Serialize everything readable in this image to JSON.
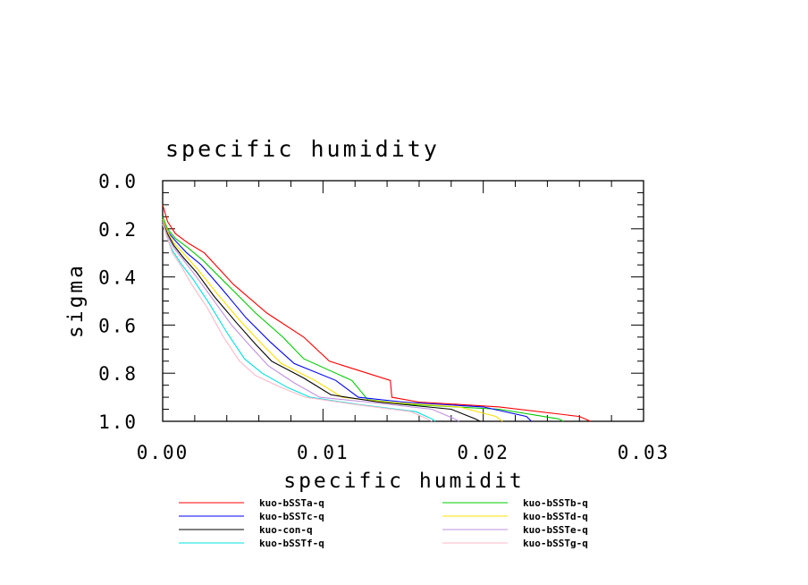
{
  "chart_data": {
    "type": "line",
    "title": "specific humidity",
    "xlabel": "specific humidit",
    "ylabel": "sigma",
    "xlim": [
      0,
      0.03
    ],
    "ylim": [
      0,
      1.0
    ],
    "y_inverted": true,
    "x_ticks": [
      "0.00",
      "0.01",
      "0.02",
      "0.03"
    ],
    "y_ticks": [
      "0.0",
      "0.2",
      "0.4",
      "0.6",
      "0.8",
      "1.0"
    ],
    "legend_position": "bottom",
    "series": [
      {
        "name": "kuo-bSSTa-q",
        "color": "#ff0000",
        "x": [
          0.0,
          0.0003,
          0.0008,
          0.0016,
          0.0026,
          0.0044,
          0.0065,
          0.0088,
          0.0104,
          0.0142,
          0.0143,
          0.016,
          0.021,
          0.026,
          0.0267
        ],
        "y": [
          0.1,
          0.17,
          0.22,
          0.26,
          0.3,
          0.43,
          0.55,
          0.65,
          0.75,
          0.83,
          0.9,
          0.92,
          0.94,
          0.98,
          1.0
        ]
      },
      {
        "name": "kuo-bSSTb-q",
        "color": "#00cc00",
        "x": [
          0.0,
          0.0003,
          0.0008,
          0.0016,
          0.0025,
          0.004,
          0.0058,
          0.0075,
          0.0088,
          0.0118,
          0.0128,
          0.0155,
          0.021,
          0.0247,
          0.025
        ],
        "y": [
          0.15,
          0.2,
          0.24,
          0.28,
          0.33,
          0.43,
          0.55,
          0.65,
          0.74,
          0.83,
          0.91,
          0.93,
          0.95,
          0.99,
          1.0
        ]
      },
      {
        "name": "kuo-bSSTc-q",
        "color": "#0000ff",
        "x": [
          0.0,
          0.0003,
          0.0008,
          0.0015,
          0.0024,
          0.0037,
          0.0052,
          0.0067,
          0.0082,
          0.0108,
          0.0122,
          0.015,
          0.02,
          0.0227,
          0.023
        ],
        "y": [
          0.16,
          0.21,
          0.25,
          0.3,
          0.35,
          0.45,
          0.57,
          0.67,
          0.76,
          0.83,
          0.9,
          0.92,
          0.94,
          0.98,
          1.0
        ]
      },
      {
        "name": "kuo-bSSTd-q",
        "color": "#ffe000",
        "x": [
          0.0,
          0.0003,
          0.0007,
          0.0014,
          0.0022,
          0.0034,
          0.0048,
          0.0062,
          0.0074,
          0.0095,
          0.0112,
          0.014,
          0.0185,
          0.0208,
          0.0212
        ],
        "y": [
          0.16,
          0.21,
          0.26,
          0.31,
          0.37,
          0.47,
          0.58,
          0.68,
          0.76,
          0.83,
          0.9,
          0.92,
          0.94,
          0.98,
          1.0
        ]
      },
      {
        "name": "kuo-con-q",
        "color": "#000000",
        "x": [
          0.0,
          0.0003,
          0.0007,
          0.0013,
          0.0021,
          0.0032,
          0.0046,
          0.0058,
          0.0068,
          0.0088,
          0.0105,
          0.0135,
          0.018,
          0.0195,
          0.0198
        ],
        "y": [
          0.17,
          0.22,
          0.27,
          0.32,
          0.38,
          0.48,
          0.59,
          0.68,
          0.75,
          0.82,
          0.89,
          0.92,
          0.95,
          0.99,
          1.0
        ]
      },
      {
        "name": "kuo-bSSTe-q",
        "color": "#c090e0",
        "x": [
          0.0,
          0.0003,
          0.0007,
          0.0013,
          0.002,
          0.0031,
          0.0043,
          0.0055,
          0.0066,
          0.0082,
          0.0098,
          0.0128,
          0.0168,
          0.0182,
          0.0185
        ],
        "y": [
          0.17,
          0.23,
          0.28,
          0.33,
          0.39,
          0.49,
          0.6,
          0.69,
          0.77,
          0.84,
          0.9,
          0.92,
          0.95,
          0.99,
          1.0
        ]
      },
      {
        "name": "kuo-bSSTf-q",
        "color": "#00e0e0",
        "x": [
          0.0,
          0.0003,
          0.0006,
          0.0012,
          0.0019,
          0.0029,
          0.004,
          0.0051,
          0.0062,
          0.0078,
          0.0092,
          0.0122,
          0.0158,
          0.0168,
          0.017
        ],
        "y": [
          0.18,
          0.24,
          0.29,
          0.35,
          0.41,
          0.51,
          0.63,
          0.74,
          0.8,
          0.86,
          0.9,
          0.93,
          0.96,
          0.99,
          1.0
        ]
      },
      {
        "name": "kuo-bSSTg-q",
        "color": "#ffb8c8",
        "x": [
          0.0,
          0.0003,
          0.0006,
          0.0012,
          0.0018,
          0.0028,
          0.0038,
          0.0048,
          0.0058,
          0.0074,
          0.0089,
          0.012,
          0.0155,
          0.0165,
          0.0168
        ],
        "y": [
          0.18,
          0.24,
          0.3,
          0.36,
          0.43,
          0.53,
          0.65,
          0.75,
          0.81,
          0.86,
          0.9,
          0.93,
          0.96,
          0.99,
          1.0
        ]
      }
    ],
    "legend_order": [
      "kuo-bSSTa-q",
      "kuo-bSSTb-q",
      "kuo-bSSTc-q",
      "kuo-bSSTd-q",
      "kuo-con-q",
      "kuo-bSSTe-q",
      "kuo-bSSTf-q",
      "kuo-bSSTg-q"
    ]
  }
}
